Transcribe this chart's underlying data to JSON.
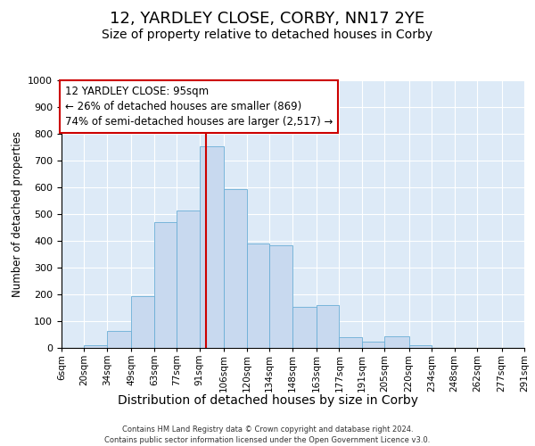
{
  "title": "12, YARDLEY CLOSE, CORBY, NN17 2YE",
  "subtitle": "Size of property relative to detached houses in Corby",
  "xlabel": "Distribution of detached houses by size in Corby",
  "ylabel": "Number of detached properties",
  "footer_line1": "Contains HM Land Registry data © Crown copyright and database right 2024.",
  "footer_line2": "Contains public sector information licensed under the Open Government Licence v3.0.",
  "annotation_line1": "12 YARDLEY CLOSE: 95sqm",
  "annotation_line2": "← 26% of detached houses are smaller (869)",
  "annotation_line3": "74% of semi-detached houses are larger (2,517) →",
  "bar_color": "#c8d9ef",
  "bar_edge_color": "#6aaed6",
  "vline_color": "#cc0000",
  "vline_x": 95,
  "bg_color": "#ddeaf7",
  "bin_edges": [
    6,
    20,
    34,
    49,
    63,
    77,
    91,
    106,
    120,
    134,
    148,
    163,
    177,
    191,
    205,
    220,
    234,
    248,
    262,
    277,
    291
  ],
  "bin_labels": [
    "6sqm",
    "20sqm",
    "34sqm",
    "49sqm",
    "63sqm",
    "77sqm",
    "91sqm",
    "106sqm",
    "120sqm",
    "134sqm",
    "148sqm",
    "163sqm",
    "177sqm",
    "191sqm",
    "205sqm",
    "220sqm",
    "234sqm",
    "248sqm",
    "262sqm",
    "277sqm",
    "291sqm"
  ],
  "values": [
    0,
    10,
    65,
    195,
    470,
    515,
    755,
    595,
    390,
    385,
    155,
    160,
    40,
    22,
    42,
    10,
    0,
    0,
    0,
    0
  ],
  "ylim": [
    0,
    1000
  ],
  "yticks": [
    0,
    100,
    200,
    300,
    400,
    500,
    600,
    700,
    800,
    900,
    1000
  ],
  "title_fontsize": 13,
  "subtitle_fontsize": 10,
  "xlabel_fontsize": 10,
  "ylabel_fontsize": 8.5,
  "tick_fontsize": 8,
  "xtick_fontsize": 7.5,
  "footer_fontsize": 6,
  "annot_fontsize": 8.5
}
